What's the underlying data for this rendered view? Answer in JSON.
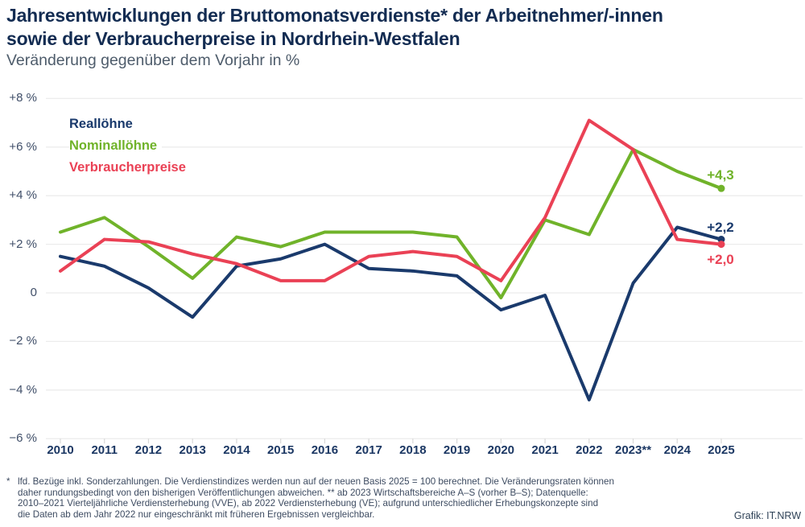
{
  "title_line1": "Jahresentwicklungen der Bruttomonatsverdienste* der Arbeitnehmer/-innen",
  "title_line2": "sowie der Verbraucherpreise in Nordrhein-Westfalen",
  "subtitle": "Veränderung gegenüber dem Vorjahr in %",
  "chart_data": {
    "type": "line",
    "categories": [
      "2010",
      "2011",
      "2012",
      "2013",
      "2014",
      "2015",
      "2016",
      "2017",
      "2018",
      "2019",
      "2020",
      "2021",
      "2022",
      "2023**",
      "2024",
      "2025"
    ],
    "series": [
      {
        "name": "Reallöhne",
        "color": "#1a3a6c",
        "values": [
          1.5,
          1.1,
          0.2,
          -1.0,
          1.1,
          1.4,
          2.0,
          1.0,
          0.9,
          0.7,
          -0.7,
          -0.1,
          -4.4,
          0.4,
          2.7,
          2.2
        ],
        "end_label": "+2,2"
      },
      {
        "name": "Nominallöhne",
        "color": "#70b32a",
        "values": [
          2.5,
          3.1,
          1.9,
          0.6,
          2.3,
          1.9,
          2.5,
          2.5,
          2.5,
          2.3,
          -0.2,
          3.0,
          2.4,
          5.9,
          5.0,
          4.3
        ],
        "end_label": "+4,3"
      },
      {
        "name": "Verbraucherpreise",
        "color": "#ea4155",
        "values": [
          0.9,
          2.2,
          2.1,
          1.6,
          1.2,
          0.5,
          0.5,
          1.5,
          1.7,
          1.5,
          0.5,
          3.1,
          7.1,
          5.9,
          2.2,
          2.0
        ],
        "end_label": "+2,0"
      }
    ],
    "ylabel": "",
    "xlabel": "",
    "ylim": [
      -6,
      8
    ],
    "ytick_values": [
      8,
      6,
      4,
      2,
      0,
      -2,
      -4,
      -6
    ],
    "ytick_labels": [
      "+8 %",
      "+6 %",
      "+4 %",
      "+2 %",
      "0",
      "−2 %",
      "−4 %",
      "−6 %"
    ],
    "grid": true,
    "legend_position": "top-left",
    "grid_color": "#ececec",
    "tick_color": "#d8d8d8"
  },
  "footnote": {
    "marker": "*",
    "lines": [
      "lfd. Bezüge inkl. Sonderzahlungen. Die Verdienstindizes werden nun auf der neuen Basis 2025 = 100 berechnet. Die Veränderungsraten können",
      "daher rundungsbedingt von den bisherigen Veröffentlichungen abweichen. ** ab 2023 Wirtschaftsbereiche A–S (vorher B–S); Datenquelle:",
      "2010–2021 Vierteljährliche Verdiensterhebung (VVE), ab 2022 Verdiensterhebung (VE); aufgrund unterschiedlicher Erhebungskonzepte sind",
      "die Daten ab dem Jahr 2022 nur eingeschränkt mit früheren Ergebnissen vergleichbar."
    ]
  },
  "credit": "Grafik: IT.NRW"
}
